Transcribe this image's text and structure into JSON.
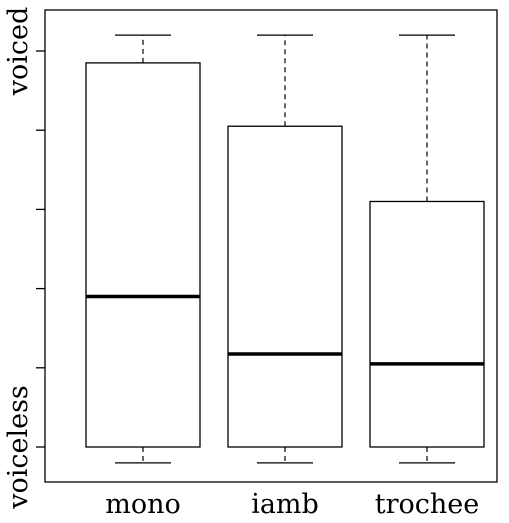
{
  "chart_data": {
    "type": "boxplot",
    "title": "",
    "xlabel": "",
    "ylabel": "",
    "categories": [
      "mono",
      "iamb",
      "trochee"
    ],
    "y_tick_labels": {
      "low": "voiceless",
      "high": "voiced"
    },
    "ylim": [
      -0.05,
      1.05
    ],
    "y_ticks": [
      0,
      0.2,
      0.4,
      0.6,
      0.8,
      1.0
    ],
    "grid": false,
    "legend": "none",
    "boxes": [
      {
        "category": "mono",
        "whisker_low": -0.04,
        "q1": 0.0,
        "median": 0.38,
        "q3": 0.97,
        "whisker_high": 1.04
      },
      {
        "category": "iamb",
        "whisker_low": -0.04,
        "q1": 0.0,
        "median": 0.235,
        "q3": 0.81,
        "whisker_high": 1.04
      },
      {
        "category": "trochee",
        "whisker_low": -0.04,
        "q1": 0.0,
        "median": 0.21,
        "q3": 0.62,
        "whisker_high": 1.04
      }
    ],
    "colors": {
      "box_fill": "#ffffff",
      "stroke": "#000000"
    }
  }
}
